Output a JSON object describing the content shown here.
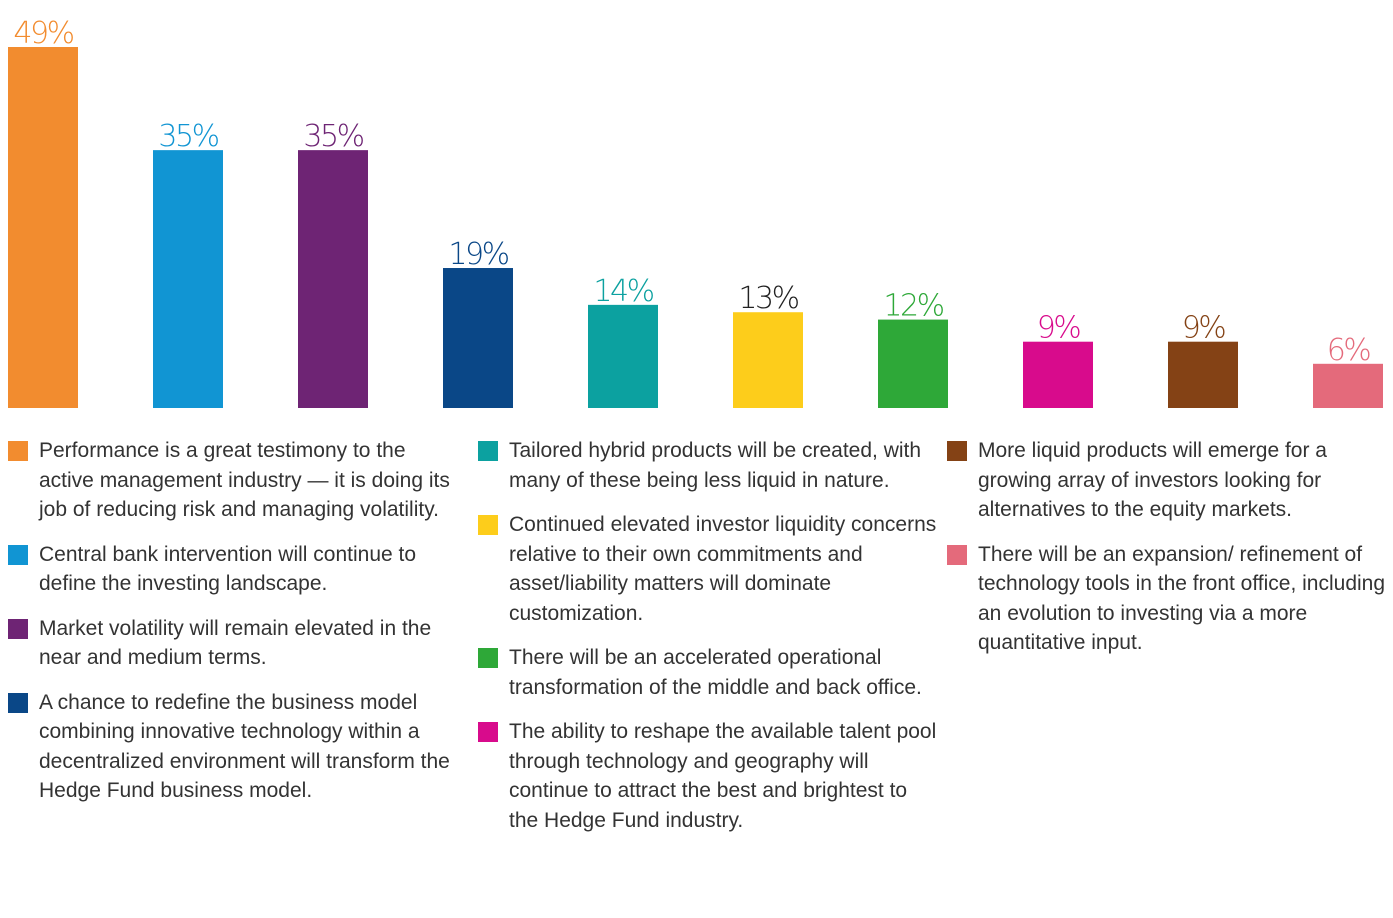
{
  "chart_data": {
    "type": "bar",
    "ylim": [
      0,
      49
    ],
    "bars": [
      {
        "value": 49,
        "label": "49%",
        "color": "#f28c2f",
        "legend": "Performance is a great testimony to the active management industry — it is doing its job of reducing risk and managing volatility."
      },
      {
        "value": 35,
        "label": "35%",
        "color": "#1195d3",
        "legend": "Central bank intervention will continue to define the investing landscape."
      },
      {
        "value": 35,
        "label": "35%",
        "color": "#6e2474",
        "legend": "Market volatility will remain elevated in the near and medium terms."
      },
      {
        "value": 19,
        "label": "19%",
        "color": "#0a4787",
        "legend": "A chance to redefine the business model combining innovative technology within a decentralized environment will transform the Hedge Fund business model."
      },
      {
        "value": 14,
        "label": "14%",
        "color": "#0ca1a0",
        "legend": "Tailored hybrid products will be created, with many of these being less liquid in nature."
      },
      {
        "value": 13,
        "label": "13%",
        "color": "#fdcd1b",
        "legend": "Continued elevated investor liquidity concerns relative to their own commitments and asset/liability matters will dominate customization."
      },
      {
        "value": 12,
        "label": "12%",
        "color": "#2ea838",
        "legend": "There will be an accelerated operational transformation of the middle and back office."
      },
      {
        "value": 9,
        "label": "9%",
        "color": "#d80b8c",
        "legend": "The ability to reshape the available talent pool through technology and geography will continue to attract the best and brightest to the Hedge Fund industry."
      },
      {
        "value": 9,
        "label": "9%",
        "color": "#844215",
        "legend": "More liquid products will emerge for a growing array of investors looking for alternatives to the equity markets."
      },
      {
        "value": 6,
        "label": "6%",
        "color": "#e46a7b",
        "legend": "There will be an expansion/ refinement of technology tools in the front office, including an evolution to investing via a more quantitative input."
      }
    ],
    "label_colors": [
      "#f28c2f",
      "#1195d3",
      "#6e2474",
      "#0a4787",
      "#0ca1a0",
      "#222222",
      "#2ea838",
      "#d80b8c",
      "#844215",
      "#e46a7b"
    ]
  }
}
